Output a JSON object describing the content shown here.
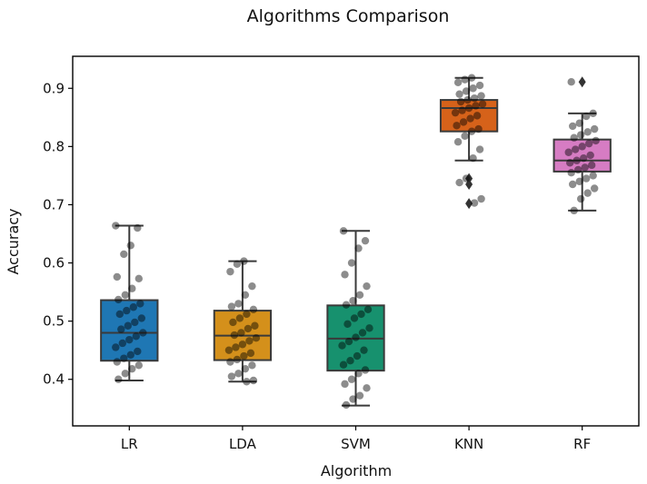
{
  "chart_data": {
    "type": "box",
    "title": "Algorithms Comparison",
    "xlabel": "Algorithm",
    "ylabel": "Accuracy",
    "ylim": [
      0.32,
      0.955
    ],
    "yticks": [
      "0.4",
      "0.5",
      "0.6",
      "0.7",
      "0.8",
      "0.9"
    ],
    "ytick_values": [
      0.4,
      0.5,
      0.6,
      0.7,
      0.8,
      0.9
    ],
    "grid": false,
    "categories": [
      "LR",
      "LDA",
      "SVM",
      "KNN",
      "RF"
    ],
    "colors": [
      "#1f77b4",
      "#d4901b",
      "#17916e",
      "#d6621a",
      "#d67cc3"
    ],
    "boxes": [
      {
        "name": "LR",
        "whislo": 0.398,
        "q1": 0.432,
        "med": 0.48,
        "q3": 0.536,
        "whishi": 0.664,
        "fliers": []
      },
      {
        "name": "LDA",
        "whislo": 0.396,
        "q1": 0.433,
        "med": 0.475,
        "q3": 0.518,
        "whishi": 0.603,
        "fliers": []
      },
      {
        "name": "SVM",
        "whislo": 0.355,
        "q1": 0.415,
        "med": 0.47,
        "q3": 0.527,
        "whishi": 0.655,
        "fliers": []
      },
      {
        "name": "KNN",
        "whislo": 0.776,
        "q1": 0.826,
        "med": 0.866,
        "q3": 0.88,
        "whishi": 0.918,
        "fliers": [
          0.745,
          0.735,
          0.702
        ]
      },
      {
        "name": "RF",
        "whislo": 0.69,
        "q1": 0.757,
        "med": 0.776,
        "q3": 0.812,
        "whishi": 0.857,
        "fliers": [
          0.911
        ]
      }
    ],
    "points": [
      [
        0.664,
        0.66,
        0.63,
        0.615,
        0.576,
        0.573,
        0.556,
        0.545,
        0.537,
        0.53,
        0.524,
        0.518,
        0.512,
        0.505,
        0.498,
        0.492,
        0.486,
        0.48,
        0.474,
        0.468,
        0.462,
        0.455,
        0.448,
        0.442,
        0.436,
        0.43,
        0.424,
        0.418,
        0.41,
        0.4
      ],
      [
        0.603,
        0.598,
        0.585,
        0.56,
        0.545,
        0.53,
        0.525,
        0.52,
        0.512,
        0.505,
        0.498,
        0.492,
        0.487,
        0.48,
        0.476,
        0.471,
        0.466,
        0.46,
        0.455,
        0.45,
        0.445,
        0.44,
        0.434,
        0.43,
        0.424,
        0.418,
        0.41,
        0.405,
        0.398,
        0.396
      ],
      [
        0.655,
        0.638,
        0.625,
        0.6,
        0.58,
        0.56,
        0.545,
        0.535,
        0.528,
        0.52,
        0.512,
        0.505,
        0.495,
        0.488,
        0.48,
        0.472,
        0.465,
        0.458,
        0.45,
        0.44,
        0.432,
        0.425,
        0.416,
        0.41,
        0.4,
        0.392,
        0.385,
        0.372,
        0.366,
        0.356
      ],
      [
        0.918,
        0.915,
        0.91,
        0.905,
        0.9,
        0.895,
        0.89,
        0.887,
        0.883,
        0.88,
        0.877,
        0.873,
        0.87,
        0.866,
        0.862,
        0.858,
        0.853,
        0.848,
        0.842,
        0.836,
        0.83,
        0.826,
        0.818,
        0.808,
        0.795,
        0.78,
        0.745,
        0.738,
        0.71,
        0.703
      ],
      [
        0.911,
        0.857,
        0.852,
        0.84,
        0.835,
        0.83,
        0.825,
        0.82,
        0.815,
        0.81,
        0.805,
        0.8,
        0.795,
        0.79,
        0.785,
        0.78,
        0.776,
        0.772,
        0.768,
        0.764,
        0.76,
        0.755,
        0.75,
        0.745,
        0.74,
        0.735,
        0.728,
        0.72,
        0.71,
        0.69
      ]
    ]
  }
}
